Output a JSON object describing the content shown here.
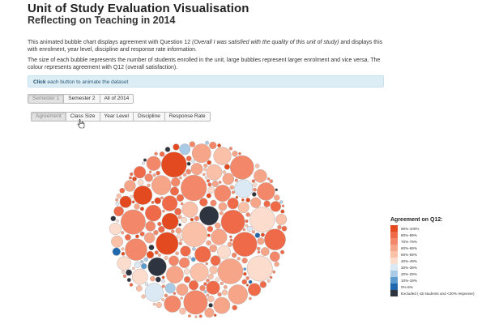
{
  "header": {
    "title": "Unit of Study Evaluation Visualisation",
    "subtitle": "Reflecting on Teaching in 2014"
  },
  "intro": {
    "p1_before": "This animated bubble chart displays agreement with Question 12 ",
    "p1_em": "(Overall I was satisfied with the quality of this unit of study)",
    "p1_after": " and displays this with enrolment, year level, discipline and response rate information.",
    "p2": "The size of each bubble represents the number of students enrolled in the unit, large bubbles represent larger enrolment and vice versa. The colour represents agreement with Q12 (overall satisfaction)."
  },
  "notice": {
    "bold": "Click",
    "rest": " each button to animate the dataset"
  },
  "semester_buttons": [
    "Semester 1",
    "Semester 2",
    "All of 2014"
  ],
  "view_buttons": [
    "Agreement",
    "Class Size",
    "Year Level",
    "Discipline",
    "Response Rate"
  ],
  "legend": {
    "title": "Agreement on Q12:",
    "items": [
      {
        "label": "90%-100%",
        "color": "#e34a1f"
      },
      {
        "label": "80%-89%",
        "color": "#ee6a48"
      },
      {
        "label": "70%-79%",
        "color": "#f3876a"
      },
      {
        "label": "60%-69%",
        "color": "#f7a588"
      },
      {
        "label": "50%-59%",
        "color": "#fac0a8"
      },
      {
        "label": "40%-49%",
        "color": "#fcdccd"
      },
      {
        "label": "30%-39%",
        "color": "#dbe9f5"
      },
      {
        "label": "20%-29%",
        "color": "#a9cbe6"
      },
      {
        "label": "10%-19%",
        "color": "#5a9bd0"
      },
      {
        "label": "0%-9%",
        "color": "#1f68ad"
      },
      {
        "label": "Excluded ( ≤5 students and <20% response)",
        "color": "#2f3540"
      }
    ]
  }
}
